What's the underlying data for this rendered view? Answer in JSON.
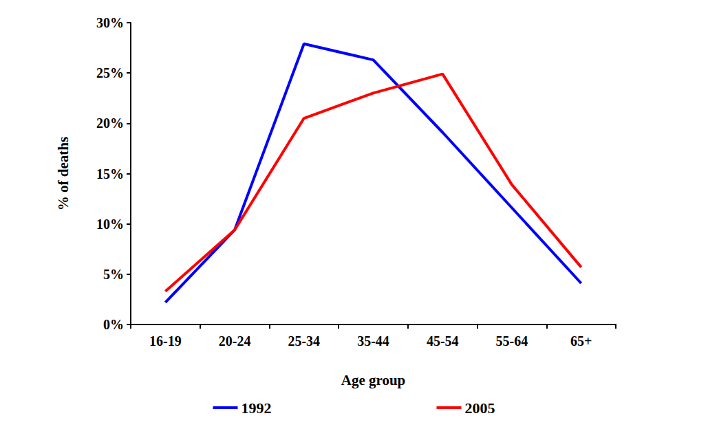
{
  "chart_data": {
    "type": "line",
    "x_label": "Age group",
    "y_label": "% of deaths",
    "categories": [
      "16-19",
      "20-24",
      "25-34",
      "35-44",
      "45-54",
      "55-64",
      "65+"
    ],
    "series": [
      {
        "name": "1992",
        "color": "#0000ff",
        "values": [
          2.2,
          9.4,
          27.9,
          26.3,
          19.1,
          11.6,
          4.1
        ]
      },
      {
        "name": "2005",
        "color": "#ff0000",
        "values": [
          3.3,
          9.4,
          20.5,
          23.0,
          24.9,
          13.9,
          5.7
        ]
      }
    ],
    "ylim": [
      0,
      30
    ],
    "yticks": [
      {
        "value": 0,
        "label": "0%"
      },
      {
        "value": 5,
        "label": "5%"
      },
      {
        "value": 10,
        "label": "10%"
      },
      {
        "value": 15,
        "label": "15%"
      },
      {
        "value": 20,
        "label": "20%"
      },
      {
        "value": 25,
        "label": "25%"
      },
      {
        "value": 30,
        "label": "30%"
      }
    ],
    "grid": false,
    "legend": "bottom"
  }
}
